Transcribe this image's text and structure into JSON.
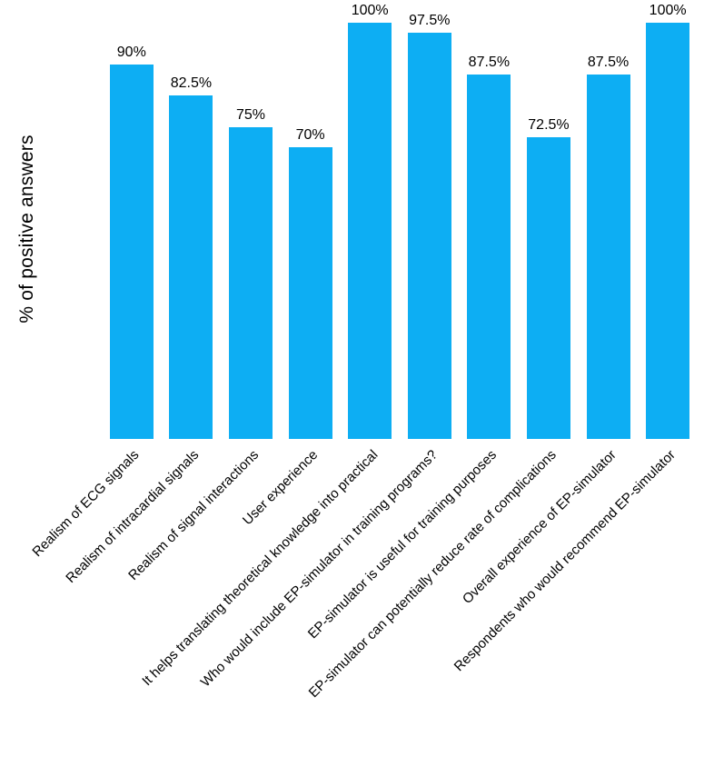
{
  "chart_data": {
    "type": "bar",
    "title": "",
    "xlabel": "",
    "ylabel": "% of positive answers",
    "ylim": [
      0,
      100
    ],
    "grid": false,
    "legend_position": "none",
    "bar_color": "#0daef3",
    "categories": [
      "Realism of ECG signals",
      "Realism of intracardial signals",
      "Realism of signal interactions",
      "User experience",
      "It helps translating theoretical knowledge into practical",
      "Who would include EP-simulator in training programs?",
      "EP-simulator is useful for training purposes",
      "EP-simulator can potentially reduce rate of complications",
      "Overall experience of EP-simulator",
      "Respondents who would recommend EP-simulator"
    ],
    "values": [
      90,
      82.5,
      75,
      70,
      100,
      97.5,
      87.5,
      72.5,
      87.5,
      100
    ],
    "value_labels": [
      "90%",
      "82.5%",
      "75%",
      "70%",
      "100%",
      "97.5%",
      "87.5%",
      "72.5%",
      "87.5%",
      "100%"
    ]
  }
}
